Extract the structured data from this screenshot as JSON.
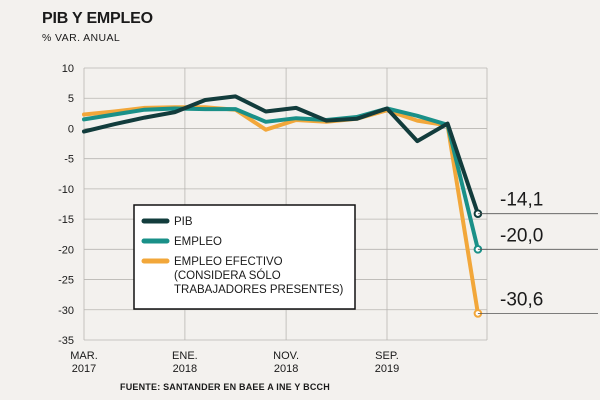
{
  "title": "PIB Y EMPLEO",
  "subtitle": "% VAR. ANUAL",
  "source": "FUENTE: SANTANDER EN BAEE A INE Y BCCH",
  "colors": {
    "pib": "#123c3c",
    "empleo": "#1a9088",
    "efectivo": "#f2a73a",
    "grid": "#b8b6b2",
    "background": "#f3f1ee"
  },
  "chart_data": {
    "type": "line",
    "title": "PIB Y EMPLEO",
    "ylabel": "% VAR. ANUAL",
    "ylim": [
      -35,
      10
    ],
    "yticks": [
      10,
      5,
      0,
      -5,
      -10,
      -15,
      -20,
      -25,
      -30,
      -35
    ],
    "x_labels": [
      {
        "line1": "MAR.",
        "line2": "2017",
        "index": 0
      },
      {
        "line1": "ENE.",
        "line2": "2018",
        "index": 3.33
      },
      {
        "line1": "NOV.",
        "line2": "2018",
        "index": 6.67
      },
      {
        "line1": "SEP.",
        "line2": "2019",
        "index": 10
      }
    ],
    "x_count": 14,
    "grid": true,
    "legend_position": "center-left",
    "series": [
      {
        "name": "PIB",
        "color_key": "pib",
        "values": [
          -0.5,
          0.7,
          1.8,
          2.7,
          4.7,
          5.3,
          2.8,
          3.4,
          1.3,
          1.6,
          3.3,
          -2.1,
          0.8,
          -14.1
        ]
      },
      {
        "name": "EMPLEO",
        "color_key": "empleo",
        "values": [
          1.5,
          2.3,
          3.1,
          3.3,
          3.2,
          3.2,
          1.1,
          1.7,
          1.4,
          1.9,
          3.3,
          2.1,
          0.6,
          -20.0
        ]
      },
      {
        "name": "EMPLEO EFECTIVO",
        "name_lines": [
          "EMPLEO EFECTIVO",
          "(CONSIDERA SÓLO",
          "TRABAJADORES PRESENTES)"
        ],
        "color_key": "efectivo",
        "values": [
          2.3,
          2.8,
          3.4,
          3.5,
          3.5,
          3.1,
          -0.2,
          1.4,
          1.1,
          1.6,
          3.0,
          1.3,
          0.5,
          -30.6
        ]
      }
    ],
    "end_labels": [
      "-14,1",
      "-20,0",
      "-30,6"
    ]
  }
}
